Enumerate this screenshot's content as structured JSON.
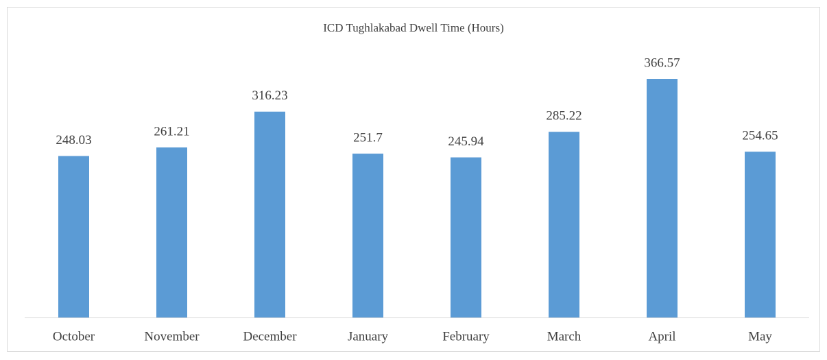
{
  "chart_data": {
    "type": "bar",
    "title": "ICD Tughlakabad Dwell Time (Hours)",
    "categories": [
      "October",
      "November",
      "December",
      "January",
      "February",
      "March",
      "April",
      "May"
    ],
    "values": [
      248.03,
      261.21,
      316.23,
      251.7,
      245.94,
      285.22,
      366.57,
      254.65
    ],
    "color": "#5b9bd5"
  }
}
